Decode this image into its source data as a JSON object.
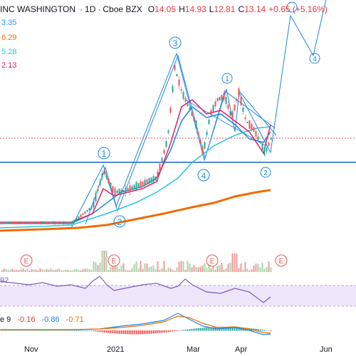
{
  "header": {
    "symbol": "INC WASHINGTON",
    "interval": "1D",
    "exchange": "Cboe BZX",
    "open_label": "O",
    "open": "14.05",
    "high_label": "H",
    "high": "14.93",
    "low_label": "L",
    "low": "12.81",
    "close_label": "C",
    "close": "13.14",
    "change": "+0.65 (+5.16%)"
  },
  "ma_values": [
    {
      "value": "3.35",
      "color": "#2196f3"
    },
    {
      "value": "6.29",
      "color": "#ff6d00"
    },
    {
      "value": "5.28",
      "color": "#26c6da"
    },
    {
      "value": "2.13",
      "color": "#e91e63"
    }
  ],
  "rsi": {
    "value": "92"
  },
  "macd": {
    "label": "e 9",
    "v1": "-0.16",
    "v2": "-0.86",
    "v3": "-0.71"
  },
  "x_axis": [
    "Nov",
    "2021",
    "Mar",
    "Apr",
    "Jun"
  ],
  "wave_labels": [
    "1",
    "2",
    "3",
    "4",
    "1",
    "2",
    "4"
  ],
  "earnings_marker": "E",
  "colors": {
    "up": "#26a69a",
    "down": "#ef5350",
    "line": "#1e88e5",
    "orange": "#ef6c00",
    "rsi": "#7e57c2"
  }
}
